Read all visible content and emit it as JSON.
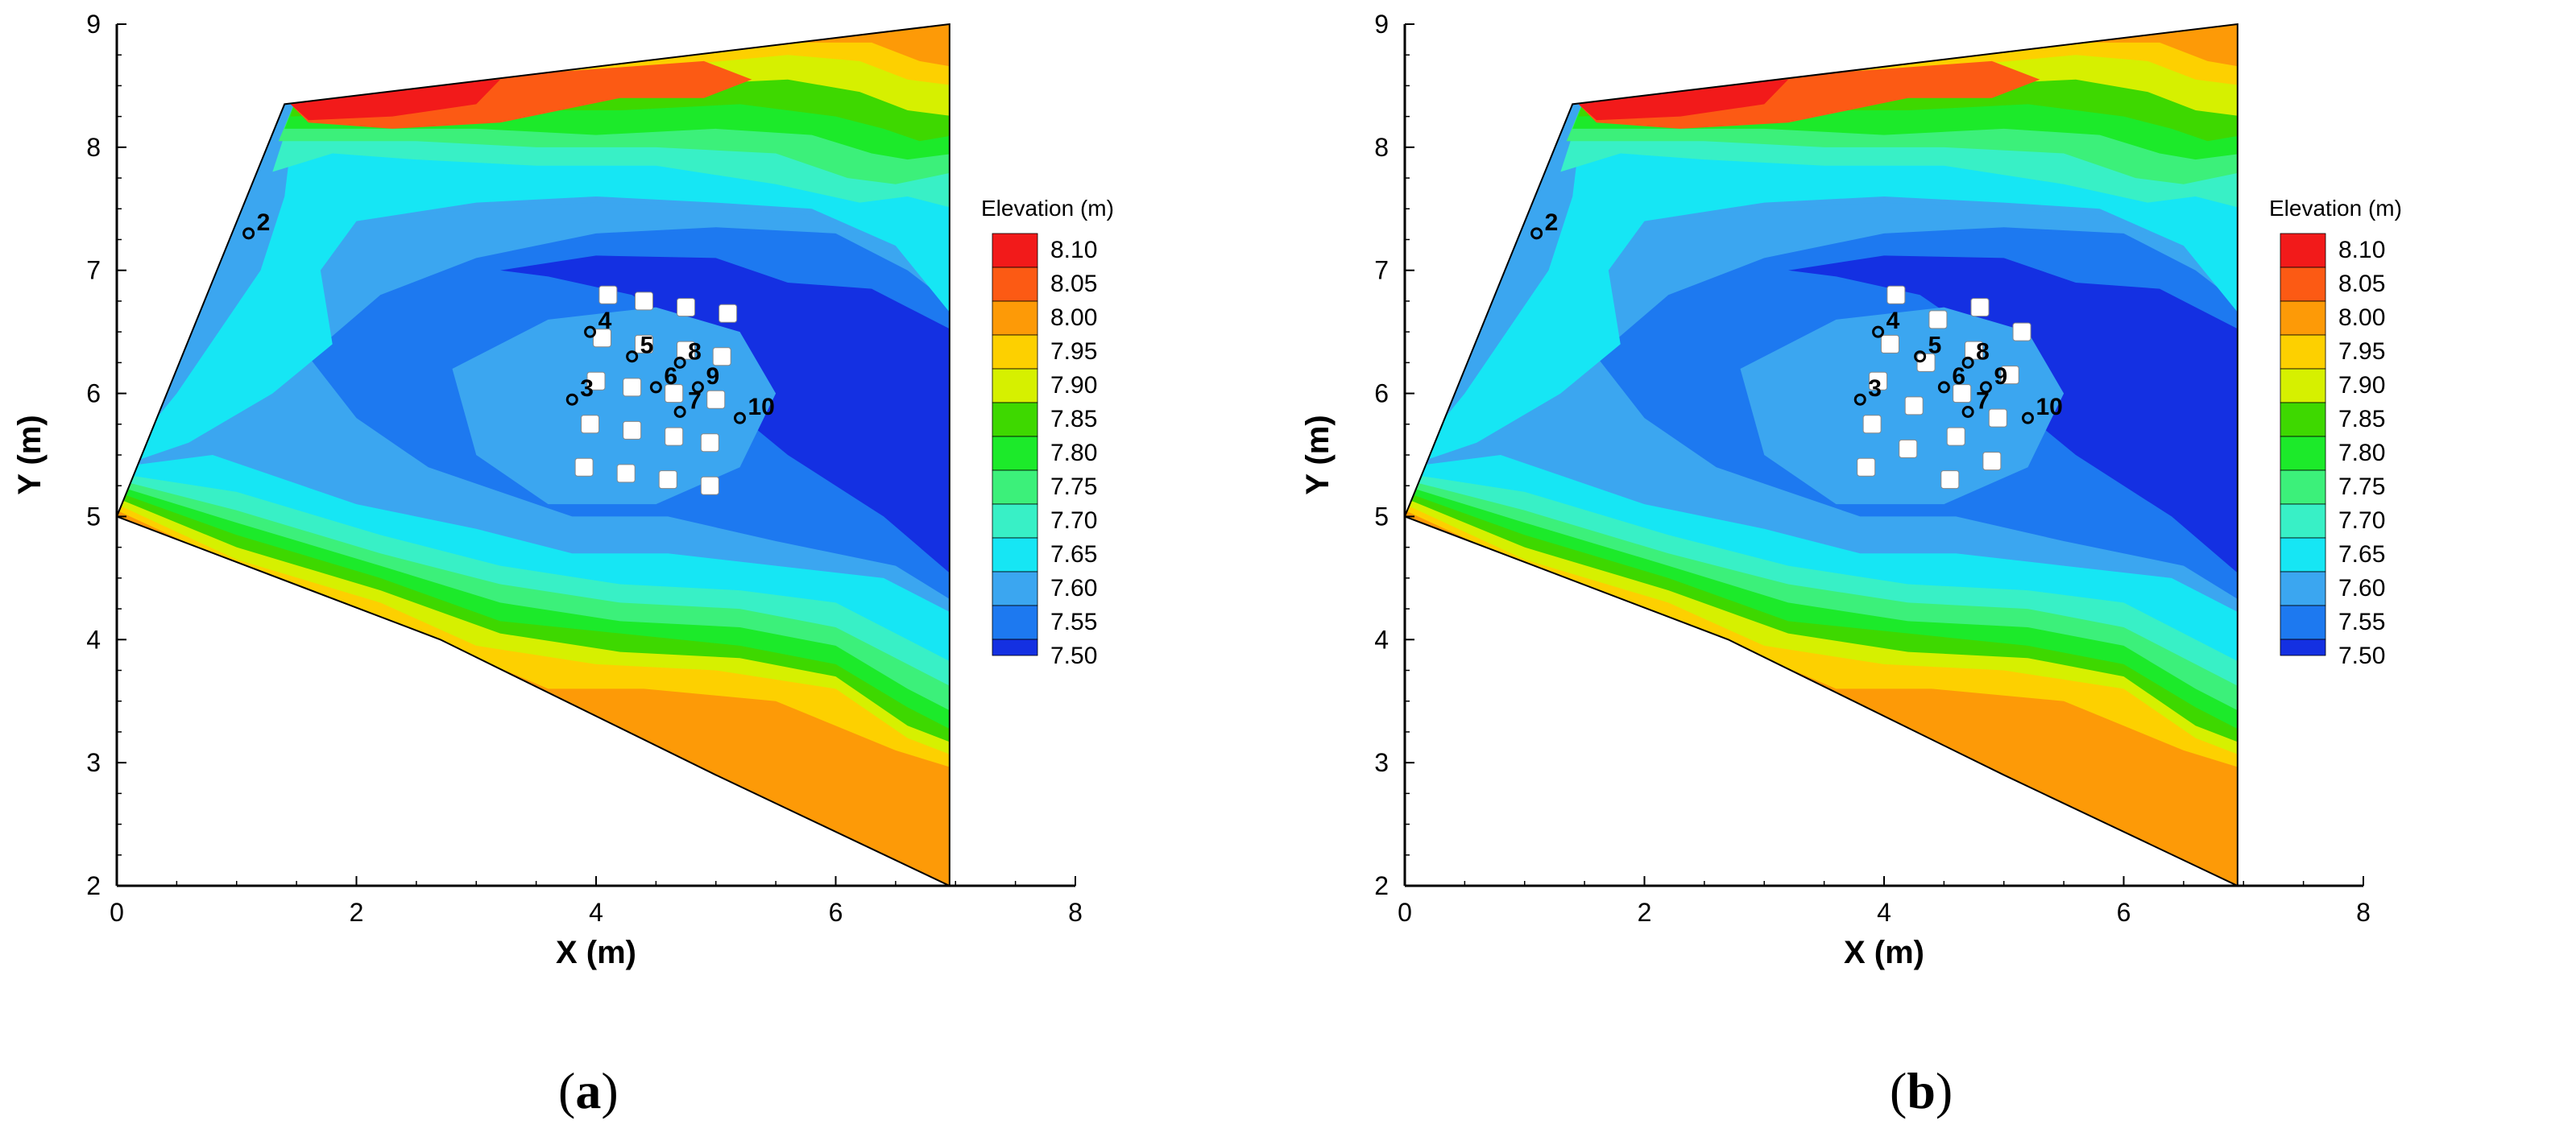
{
  "chart_data": [
    {
      "type": "heatmap",
      "panel": "(a)",
      "xlabel": "X (m)",
      "ylabel": "Y (m)",
      "xlim": [
        0,
        8
      ],
      "ylim": [
        2,
        9
      ],
      "xticks": [
        0,
        2,
        4,
        6,
        8
      ],
      "yticks": [
        2,
        3,
        4,
        5,
        6,
        7,
        8,
        9
      ],
      "colorbar": {
        "title": "Elevation (m)",
        "levels": [
          8.1,
          8.05,
          8.0,
          7.95,
          7.9,
          7.85,
          7.8,
          7.75,
          7.7,
          7.65,
          7.6,
          7.55,
          7.5
        ],
        "colors": [
          "#f21a1a",
          "#fc5a14",
          "#fd9a07",
          "#fdd000",
          "#d6f000",
          "#3ed800",
          "#1cea2a",
          "#3cf07a",
          "#38f0c6",
          "#16e6f4",
          "#3ba6f0",
          "#1d79f0",
          "#1430e2"
        ]
      },
      "domain_outline": [
        [
          0,
          5.0
        ],
        [
          1.4,
          8.35
        ],
        [
          6.95,
          9.0
        ],
        [
          6.95,
          2.0
        ],
        [
          5.0,
          2.9
        ],
        [
          2.7,
          4.0
        ],
        [
          0,
          5.0
        ]
      ],
      "blocks": [
        [
          4.1,
          6.8
        ],
        [
          4.4,
          6.75
        ],
        [
          4.75,
          6.7
        ],
        [
          5.1,
          6.65
        ],
        [
          4.05,
          6.45
        ],
        [
          4.4,
          6.4
        ],
        [
          4.75,
          6.35
        ],
        [
          5.05,
          6.3
        ],
        [
          4.0,
          6.1
        ],
        [
          4.3,
          6.05
        ],
        [
          4.65,
          6.0
        ],
        [
          5.0,
          5.95
        ],
        [
          3.95,
          5.75
        ],
        [
          4.3,
          5.7
        ],
        [
          4.65,
          5.65
        ],
        [
          4.95,
          5.6
        ],
        [
          3.9,
          5.4
        ],
        [
          4.25,
          5.35
        ],
        [
          4.6,
          5.3
        ],
        [
          4.95,
          5.25
        ]
      ],
      "gauges": [
        {
          "label": "2",
          "x": 1.1,
          "y": 7.3
        },
        {
          "label": "3",
          "x": 3.8,
          "y": 5.95
        },
        {
          "label": "4",
          "x": 3.95,
          "y": 6.5
        },
        {
          "label": "5",
          "x": 4.3,
          "y": 6.3
        },
        {
          "label": "6",
          "x": 4.5,
          "y": 6.05
        },
        {
          "label": "7",
          "x": 4.7,
          "y": 5.85
        },
        {
          "label": "8",
          "x": 4.7,
          "y": 6.25
        },
        {
          "label": "9",
          "x": 4.85,
          "y": 6.05
        },
        {
          "label": "10",
          "x": 5.2,
          "y": 5.8
        }
      ]
    },
    {
      "type": "heatmap",
      "panel": "(b)",
      "xlabel": "X (m)",
      "ylabel": "Y (m)",
      "xlim": [
        0,
        8
      ],
      "ylim": [
        2,
        9
      ],
      "xticks": [
        0,
        2,
        4,
        6,
        8
      ],
      "yticks": [
        2,
        3,
        4,
        5,
        6,
        7,
        8,
        9
      ],
      "colorbar": {
        "title": "Elevation (m)",
        "levels": [
          8.1,
          8.05,
          8.0,
          7.95,
          7.9,
          7.85,
          7.8,
          7.75,
          7.7,
          7.65,
          7.6,
          7.55,
          7.5
        ],
        "colors": [
          "#f21a1a",
          "#fc5a14",
          "#fd9a07",
          "#fdd000",
          "#d6f000",
          "#3ed800",
          "#1cea2a",
          "#3cf07a",
          "#38f0c6",
          "#16e6f4",
          "#3ba6f0",
          "#1d79f0",
          "#1430e2"
        ]
      },
      "domain_outline": [
        [
          0,
          5.0
        ],
        [
          1.4,
          8.35
        ],
        [
          6.95,
          9.0
        ],
        [
          6.95,
          2.0
        ],
        [
          5.0,
          2.9
        ],
        [
          2.7,
          4.0
        ],
        [
          0,
          5.0
        ]
      ],
      "blocks": [
        [
          4.1,
          6.8
        ],
        [
          4.8,
          6.7
        ],
        [
          4.45,
          6.6
        ],
        [
          5.15,
          6.5
        ],
        [
          4.05,
          6.4
        ],
        [
          4.75,
          6.35
        ],
        [
          4.35,
          6.25
        ],
        [
          5.05,
          6.15
        ],
        [
          3.95,
          6.1
        ],
        [
          4.65,
          6.0
        ],
        [
          4.25,
          5.9
        ],
        [
          4.95,
          5.8
        ],
        [
          3.9,
          5.75
        ],
        [
          4.6,
          5.65
        ],
        [
          4.2,
          5.55
        ],
        [
          4.9,
          5.45
        ],
        [
          3.85,
          5.4
        ],
        [
          4.55,
          5.3
        ]
      ],
      "gauges": [
        {
          "label": "2",
          "x": 1.1,
          "y": 7.3
        },
        {
          "label": "3",
          "x": 3.8,
          "y": 5.95
        },
        {
          "label": "4",
          "x": 3.95,
          "y": 6.5
        },
        {
          "label": "5",
          "x": 4.3,
          "y": 6.3
        },
        {
          "label": "6",
          "x": 4.5,
          "y": 6.05
        },
        {
          "label": "7",
          "x": 4.7,
          "y": 5.85
        },
        {
          "label": "8",
          "x": 4.7,
          "y": 6.25
        },
        {
          "label": "9",
          "x": 4.85,
          "y": 6.05
        },
        {
          "label": "10",
          "x": 5.2,
          "y": 5.8
        }
      ]
    }
  ],
  "captions": [
    "a",
    "b"
  ]
}
